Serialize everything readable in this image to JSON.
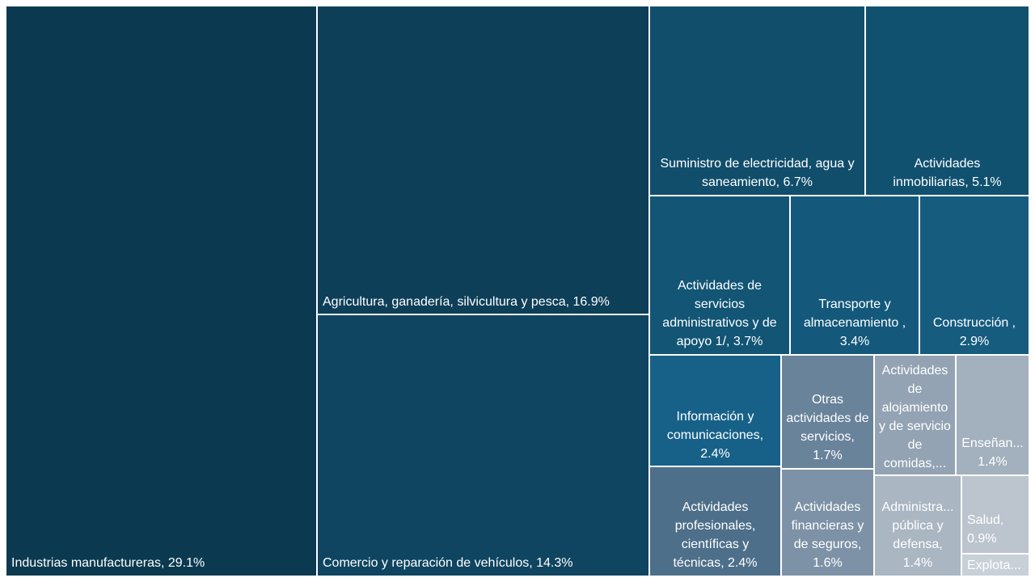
{
  "chart_data": {
    "type": "treemap",
    "title": "",
    "items": [
      {
        "name": "Industrias manufactureras",
        "label": "Industrias manufactureras, 29.1%",
        "value": 29.1,
        "color": "#0b3a50"
      },
      {
        "name": "Agricultura, ganadería, silvicultura y pesca",
        "label": "Agricultura, ganadería, silvicultura y pesca, 16.9%",
        "value": 16.9,
        "color": "#0d3f58"
      },
      {
        "name": "Comercio y reparación de vehículos",
        "label": "Comercio y reparación de vehículos, 14.3%",
        "value": 14.3,
        "color": "#0f4560"
      },
      {
        "name": "Suministro de electricidad, agua y saneamiento",
        "label": "Suministro de electricidad, agua y saneamiento, 6.7%",
        "value": 6.7,
        "color": "#114e6b"
      },
      {
        "name": "Actividades inmobiliarias",
        "label": "Actividades inmobiliarias, 5.1%",
        "value": 5.1,
        "color": "#115170"
      },
      {
        "name": "Actividades de servicios administrativos y de apoyo 1/",
        "label": "Actividades de servicios administrativos y de apoyo 1/, 3.7%",
        "value": 3.7,
        "color": "#125575"
      },
      {
        "name": "Transporte y almacenamiento",
        "label": "Transporte y almacenamiento , 3.4%",
        "value": 3.4,
        "color": "#14597b"
      },
      {
        "name": "Construcción",
        "label": "Construcción , 2.9%",
        "value": 2.9,
        "color": "#155c7f"
      },
      {
        "name": "Información y comunicaciones",
        "label": "Información y comunicaciones, 2.4%",
        "value": 2.4,
        "color": "#176189"
      },
      {
        "name": "Actividades profesionales, científicas y técnicas",
        "label": "Actividades profesionales, científicas y técnicas, 2.4%",
        "value": 2.4,
        "color": "#4d6f8a"
      },
      {
        "name": "Otras actividades de servicios",
        "label": "Otras actividades de servicios, 1.7%",
        "value": 1.7,
        "color": "#68839a"
      },
      {
        "name": "Actividades financieras y de seguros",
        "label": "Actividades financieras y de seguros, 1.6%",
        "value": 1.6,
        "color": "#7d92a6"
      },
      {
        "name": "Actividades de alojamiento y de servicio de comidas",
        "label": "Actividades de alojamiento y de servicio de comidas,...",
        "value": 1.5,
        "color": "#93a3b3"
      },
      {
        "name": "Enseñanza",
        "label": "Enseñan... 1.4%",
        "value": 1.4,
        "color": "#a3b0bd"
      },
      {
        "name": "Administración pública y defensa",
        "label": "Administra... pública y defensa, 1.4%",
        "value": 1.4,
        "color": "#aab6c2"
      },
      {
        "name": "Salud",
        "label": "Salud, 0.9%",
        "value": 0.9,
        "color": "#bcc5ce"
      },
      {
        "name": "Explotación",
        "label": "Explota...",
        "value": 0.3,
        "color": "#c8d0d8"
      }
    ]
  }
}
